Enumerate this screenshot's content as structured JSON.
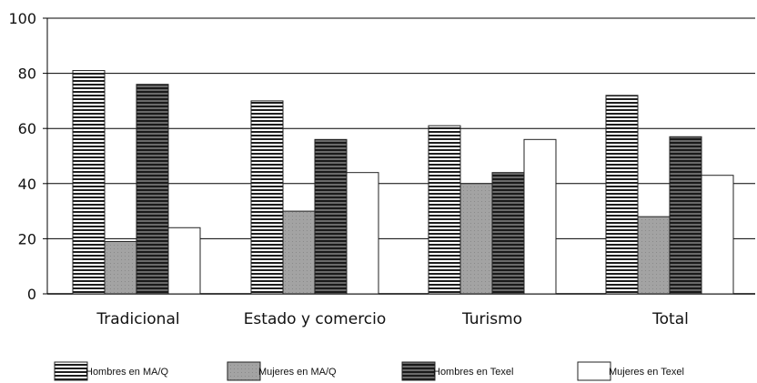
{
  "chart_data": {
    "type": "bar",
    "categories": [
      "Tradicional",
      "Estado y comercio",
      "Turismo",
      "Total"
    ],
    "series": [
      {
        "name": "Hombres en MA/Q",
        "values": [
          81,
          70,
          61,
          72
        ],
        "fill": "horizontal-stripes",
        "color": "#2a2a2a"
      },
      {
        "name": "Mujeres en MA/Q",
        "values": [
          19,
          30,
          40,
          28
        ],
        "fill": "solid-gray",
        "color": "#9a9a9a"
      },
      {
        "name": "Hombres en Texel",
        "values": [
          76,
          56,
          44,
          57
        ],
        "fill": "dark-stripes",
        "color": "#3a3a3a"
      },
      {
        "name": "Mujeres en Texel",
        "values": [
          24,
          44,
          56,
          43
        ],
        "fill": "white",
        "color": "#ffffff"
      }
    ],
    "ylim": [
      0,
      100
    ],
    "yticks": [
      "0",
      "20",
      "40",
      "60",
      "80",
      "100"
    ],
    "grid": true,
    "legend_position": "bottom"
  }
}
